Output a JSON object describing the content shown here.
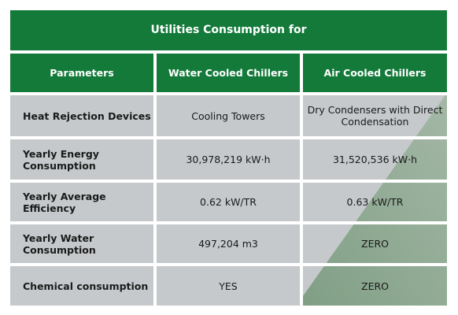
{
  "title": "Utilities Consumption for",
  "headers": {
    "parameters": "Parameters",
    "water": "Water Cooled Chillers",
    "air": "Air Cooled Chillers"
  },
  "rows": [
    {
      "param": "Heat Rejection Devices",
      "water": "Cooling Towers",
      "air": "Dry Condensers with Direct Condensation"
    },
    {
      "param": "Yearly Energy Consumption",
      "water": "30,978,219 kW·h",
      "air": "31,520,536 kW·h"
    },
    {
      "param": "Yearly Average Efficiency",
      "water": "0.62 kW/TR",
      "air": "0.63 kW/TR"
    },
    {
      "param": "Yearly Water Consumption",
      "water": "497,204 m3",
      "air": "ZERO"
    },
    {
      "param": "Chemical consumption",
      "water": "YES",
      "air": "ZERO"
    }
  ],
  "colors": {
    "header_green": "#137a3a",
    "row_grey": "#c5c9cb",
    "diagonal_green": "#8fa98f"
  }
}
